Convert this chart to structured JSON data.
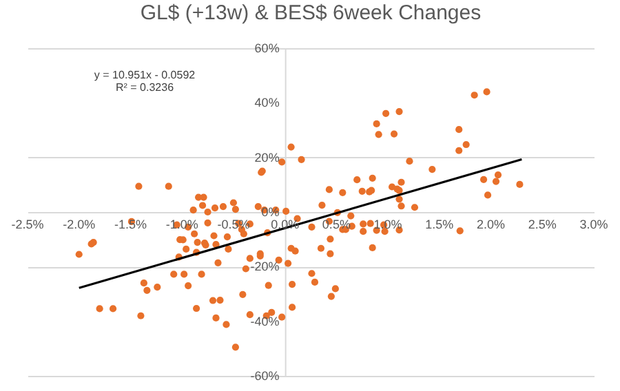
{
  "chart_data": {
    "type": "scatter",
    "title": "GL$ (+13w) & BES$ 6week Changes",
    "annotations": [
      "y = 10.951x - 0.0592",
      "R² = 0.3236"
    ],
    "xlim": [
      -2.5,
      3.0
    ],
    "xticks": [
      {
        "value": -2.5,
        "label": "-2.5%"
      },
      {
        "value": -2.0,
        "label": "-2.0%"
      },
      {
        "value": -1.5,
        "label": "-1.5%"
      },
      {
        "value": -1.0,
        "label": "-1.0%"
      },
      {
        "value": -0.5,
        "label": "-0.5%"
      },
      {
        "value": 0,
        "label": "0.0%"
      },
      {
        "value": 0.5,
        "label": "0.5%"
      },
      {
        "value": 1.0,
        "label": "1.0%"
      },
      {
        "value": 1.5,
        "label": "1.5%"
      },
      {
        "value": 2.0,
        "label": "2.0%"
      },
      {
        "value": 2.5,
        "label": "2.5%"
      },
      {
        "value": 3.0,
        "label": "3.0%"
      }
    ],
    "ylim": [
      -60,
      60
    ],
    "yticks": [
      {
        "value": -60,
        "label": "-60%"
      },
      {
        "value": -40,
        "label": "-40%"
      },
      {
        "value": -20,
        "label": "-20%"
      },
      {
        "value": 0,
        "label": "0%"
      },
      {
        "value": 20,
        "label": "20%"
      },
      {
        "value": 40,
        "label": "40%"
      },
      {
        "value": 60,
        "label": "60%"
      }
    ],
    "grid": "y",
    "series": [
      {
        "type": "scatter",
        "color": "#e8702a",
        "marker": "circle",
        "x": [
          0.06,
          -0.03,
          0.16,
          -0.22,
          -0.23,
          -1.42,
          -1.13,
          -0.84,
          -0.79,
          -0.8,
          -0.89,
          -0.75,
          -0.68,
          -0.6,
          -0.5,
          -0.48,
          -0.26,
          -0.2,
          -0.09,
          0.01,
          0.36,
          0.43,
          -1.49,
          -1.05,
          -0.94,
          -0.75,
          -0.45,
          -0.34,
          -0.42,
          -0.4,
          -0.88,
          -0.56,
          -0.69,
          -0.17,
          0.12,
          0.26,
          -1.02,
          -0.99,
          -0.85,
          -0.78,
          -0.77,
          -0.67,
          -0.96,
          -0.55,
          -0.24,
          -0.24,
          0.06,
          0.1,
          0.35,
          -1.88,
          -1.86,
          -2.0,
          -1.03,
          -0.65,
          -0.34,
          -0.06,
          0.03,
          -0.38,
          0.26,
          -1.08,
          -0.98,
          -0.81,
          -0.86,
          0.44,
          0.85,
          0.29,
          0.07,
          -0.16,
          -0.41,
          0.49,
          0.45,
          -1.37,
          -1.34,
          -1.24,
          -0.94,
          -1.8,
          -1.67,
          -1.4,
          -0.86,
          -0.7,
          -0.63,
          -0.67,
          -0.57,
          -0.34,
          -0.18,
          -0.13,
          -0.03,
          0.07,
          -0.48,
          1.84,
          1.96,
          0.98,
          1.11,
          0.89,
          0.91,
          1.06,
          1.69,
          1.76,
          1.69,
          1.21,
          1.43,
          0.7,
          0.85,
          0.75,
          0.82,
          0.84,
          0.56,
          1.04,
          1.09,
          1.11,
          1.13,
          1.11,
          1.13,
          1.26,
          0.51,
          0.64,
          0.43,
          0.56,
          0.59,
          0.65,
          0.76,
          0.83,
          0.76,
          0.89,
          0.96,
          0.97,
          1.11,
          1.7,
          0.44,
          1.93,
          2.07,
          2.05,
          1.97,
          2.28
        ],
        "values": [
          23.8,
          18.3,
          19.2,
          15.0,
          14.5,
          9.4,
          9.4,
          5.4,
          5.4,
          2.4,
          0.7,
          0.0,
          1.5,
          2.0,
          3.4,
          1.0,
          2.0,
          0.7,
          0.7,
          0.3,
          2.5,
          8.2,
          -3.5,
          -4.7,
          -5.5,
          -4.0,
          -4.2,
          -4.4,
          -6.4,
          -8.0,
          -8.0,
          -9.1,
          -8.7,
          -7.6,
          -2.4,
          -5.5,
          -10.1,
          -10.2,
          -11.1,
          -11.4,
          -12.1,
          -11.9,
          -13.6,
          -13.6,
          -15.3,
          -16.1,
          -13.3,
          -14.3,
          -13.3,
          -11.7,
          -11.1,
          -15.5,
          -16.5,
          -18.6,
          -17.0,
          -17.6,
          -18.8,
          -20.8,
          -22.5,
          -22.8,
          -22.8,
          -22.8,
          -14.8,
          -15.3,
          -13.1,
          -25.7,
          -26.5,
          -26.9,
          -30.2,
          -28.1,
          -30.9,
          -26.0,
          -28.7,
          -27.5,
          -27.0,
          -35.4,
          -35.4,
          -38.0,
          -35.3,
          -32.4,
          -32.3,
          -38.8,
          -41.2,
          -37.6,
          -38.0,
          -36.8,
          -38.5,
          -34.9,
          -49.5,
          42.8,
          44.0,
          36.1,
          36.8,
          32.3,
          28.4,
          28.6,
          30.2,
          24.7,
          22.5,
          18.6,
          15.6,
          11.8,
          12.4,
          7.6,
          7.4,
          7.9,
          7.1,
          9.2,
          8.4,
          7.9,
          10.9,
          4.7,
          2.2,
          1.7,
          -0.2,
          -1.4,
          -3.4,
          -6.4,
          -6.4,
          -5.2,
          -4.4,
          -4.2,
          -7.1,
          -6.7,
          -4.7,
          -7.1,
          -6.6,
          -6.9,
          -9.9,
          11.9,
          13.6,
          11.2,
          6.2,
          10.1
        ]
      },
      {
        "type": "line",
        "color": "#000000",
        "x": [
          -2.0,
          2.3
        ],
        "values": [
          -27.8,
          19.3
        ]
      }
    ]
  }
}
